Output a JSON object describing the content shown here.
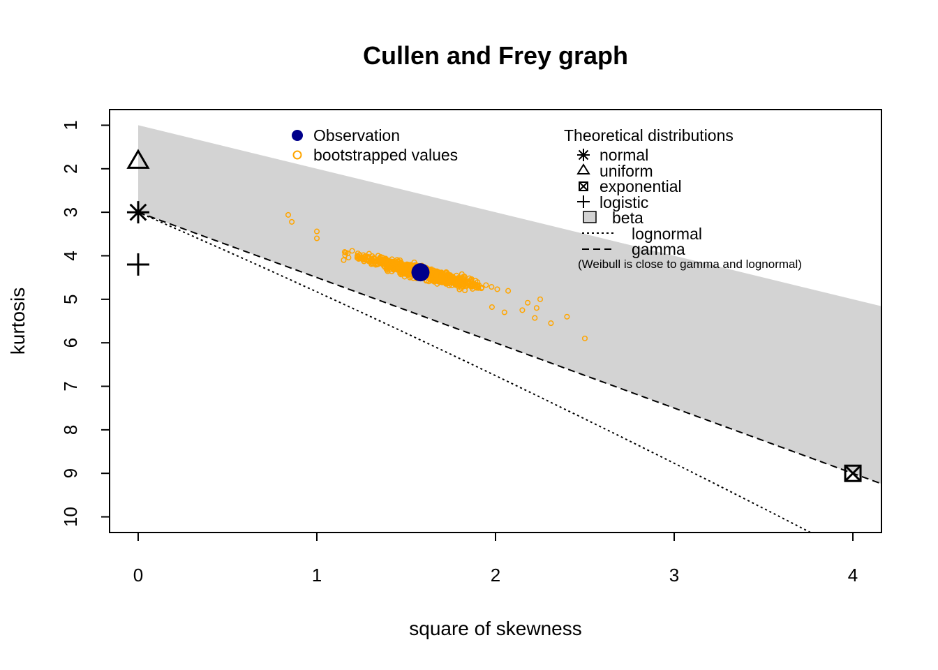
{
  "chart_data": {
    "type": "scatter",
    "title": "Cullen and Frey graph",
    "xlabel": "square of skewness",
    "ylabel": "kurtosis",
    "xlim": [
      -0.16,
      4.16
    ],
    "ylim": [
      10.36,
      0.64
    ],
    "y_axis_reversed": true,
    "x_ticks": [
      "0",
      "1",
      "2",
      "3",
      "4"
    ],
    "y_ticks": [
      "1",
      "2",
      "3",
      "4",
      "5",
      "6",
      "7",
      "8",
      "9",
      "10"
    ],
    "grid": false,
    "observation": {
      "x": 1.58,
      "y": 4.38,
      "color": "#00008b"
    },
    "bootstrap": {
      "color": "#ffa500",
      "n_points": 1000,
      "outliers": [
        [
          0.84,
          3.06
        ],
        [
          0.86,
          3.22
        ],
        [
          1.0,
          3.44
        ],
        [
          1.0,
          3.6
        ],
        [
          1.15,
          4.1
        ],
        [
          2.4,
          5.4
        ],
        [
          2.5,
          5.9
        ],
        [
          2.31,
          5.55
        ],
        [
          2.25,
          5.0
        ],
        [
          2.22,
          5.43
        ],
        [
          2.23,
          5.2
        ],
        [
          2.15,
          5.25
        ],
        [
          2.05,
          5.3
        ],
        [
          2.18,
          5.08
        ],
        [
          1.98,
          5.18
        ]
      ]
    },
    "theoretical": {
      "normal": {
        "x": 0,
        "y": 3
      },
      "uniform": {
        "x": 0,
        "y": 1.8
      },
      "exponential": {
        "x": 4,
        "y": 9
      },
      "logistic": {
        "x": 0,
        "y": 4.2
      },
      "beta_region": {
        "upper_bound": "y = x + 1",
        "lower_bound": "y = 1.5x + 3",
        "color": "#d3d3d3"
      },
      "lognormal_curve": "kurtosis = w^4 + 2w^3 + 3w^2 - 3, skew^2 = (w+2)^2 (w-1)",
      "gamma_line": "y = 1.5x + 3"
    },
    "legend": {
      "placement": "top",
      "observation_label": "Observation",
      "bootstrap_label": "bootstrapped values",
      "theoretical_title": "Theoretical distributions",
      "normal_label": "normal",
      "uniform_label": "uniform",
      "exponential_label": "exponential",
      "logistic_label": "logistic",
      "beta_label": "beta",
      "lognormal_label": "lognormal",
      "gamma_label": "gamma",
      "note": "(Weibull is close to gamma and lognormal)"
    }
  }
}
